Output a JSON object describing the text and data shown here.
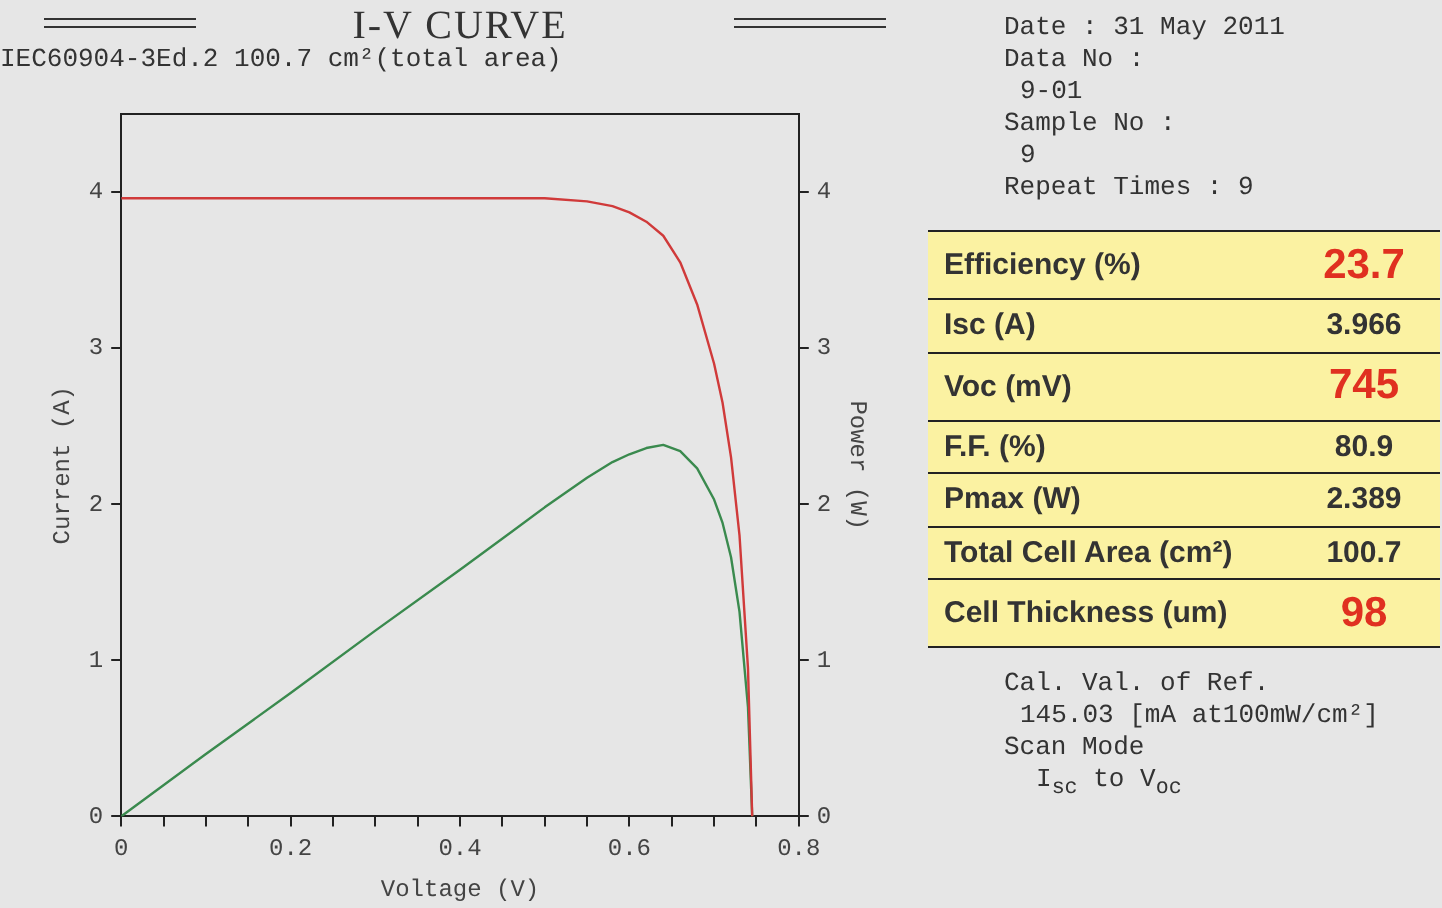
{
  "chart_data": [
    {
      "type": "line",
      "title": "I-V CURVE",
      "subtitle": "IEC60904-3Ed.2 100.7 cm²(total area)",
      "xlabel": "Voltage (V)",
      "ylabel": "Current (A)",
      "y2label": "Power (W)",
      "x": [
        0,
        0.1,
        0.2,
        0.3,
        0.4,
        0.5,
        0.55,
        0.58,
        0.6,
        0.62,
        0.64,
        0.66,
        0.68,
        0.7,
        0.71,
        0.72,
        0.73,
        0.74,
        0.745
      ],
      "series": [
        {
          "color": "#d03a3a",
          "values": [
            3.96,
            3.96,
            3.96,
            3.96,
            3.96,
            3.96,
            3.94,
            3.91,
            3.87,
            3.81,
            3.72,
            3.55,
            3.28,
            2.9,
            2.65,
            2.3,
            1.8,
            0.95,
            0
          ]
        },
        {
          "color": "#3a8a4e",
          "axis": "y2",
          "values": [
            0,
            0.4,
            0.79,
            1.19,
            1.58,
            1.98,
            2.17,
            2.27,
            2.32,
            2.36,
            2.38,
            2.34,
            2.23,
            2.03,
            1.88,
            1.66,
            1.31,
            0.7,
            0
          ]
        }
      ],
      "xlim": [
        0,
        0.8
      ],
      "xticks": [
        0,
        {
          "value": 0.05,
          "label": null
        },
        {
          "value": 0.1,
          "label": null
        },
        {
          "value": 0.15,
          "label": null
        },
        0.2,
        {
          "value": 0.25,
          "label": null
        },
        {
          "value": 0.3,
          "label": null
        },
        {
          "value": 0.35,
          "label": null
        },
        0.4,
        {
          "value": 0.45,
          "label": null
        },
        {
          "value": 0.5,
          "label": null
        },
        {
          "value": 0.55,
          "label": null
        },
        0.6,
        {
          "value": 0.65,
          "label": null
        },
        {
          "value": 0.7,
          "label": null
        },
        {
          "value": 0.75,
          "label": null
        },
        0.8
      ],
      "ylim": [
        0,
        4.5
      ],
      "yticks": [
        0,
        1,
        2,
        3,
        4
      ],
      "y2lim": [
        0,
        4.5
      ],
      "y2ticks": [
        0,
        1,
        2,
        3,
        4
      ],
      "grid": false,
      "legend": false,
      "marker": "none",
      "line_style": "solid"
    },
    {
      "type": "other",
      "annotations": [
        "Date : 31 May 2011",
        "Data No :",
        "9-01",
        "Sample No :",
        "9",
        "Repeat Times : 9",
        "Efficiency (%)",
        "23.7",
        "Isc (A)",
        "3.966",
        "Voc (mV)",
        "745",
        "F.F. (%)",
        "80.9",
        "Pmax (W)",
        "2.389",
        "Total Cell Area (cm²)",
        "100.7",
        "Cell Thickness (um)",
        "98",
        "Cal. Val. of Ref.",
        "145.03 [mA at100mW/cm²]",
        "Scan Mode",
        "I$_{sc}$ to V$_{oc}$"
      ]
    }
  ]
}
